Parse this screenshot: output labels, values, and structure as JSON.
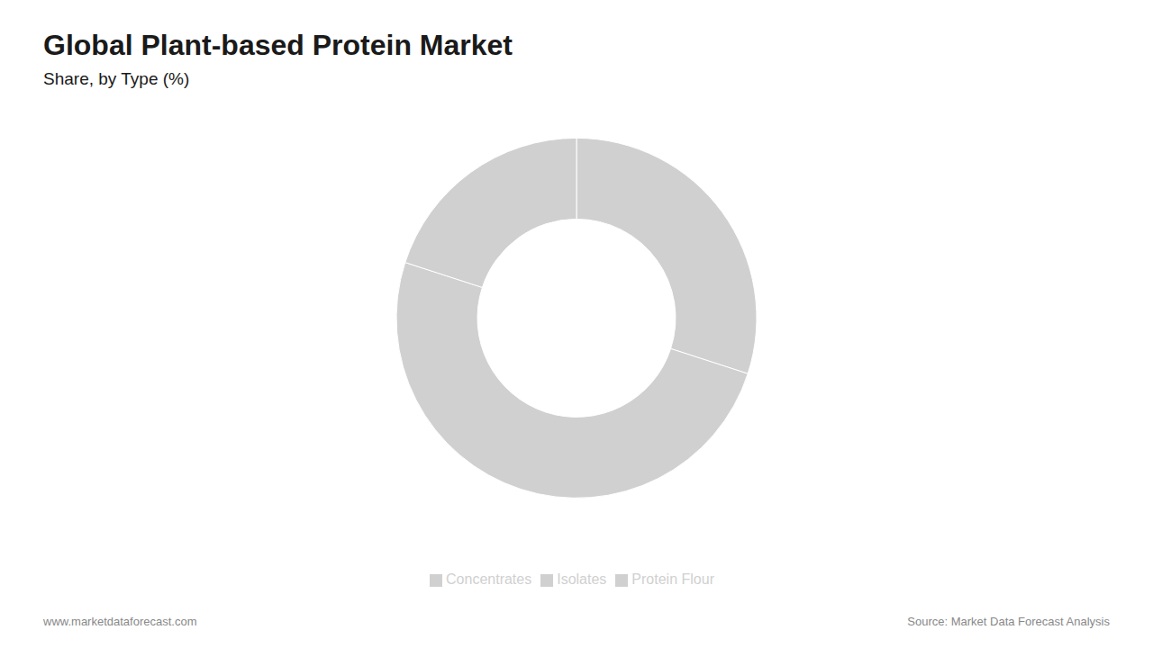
{
  "chart_data": {
    "type": "donut",
    "title": "Global Plant-based Protein Market",
    "subtitle": "Share, by Type (%)",
    "categories": [
      "Isolates",
      "Concentrates",
      "Protein Flour"
    ],
    "values": [
      30,
      50,
      20
    ],
    "colors": [
      "#d0d0d0",
      "#d0d0d0",
      "#d0d0d0"
    ],
    "legend": "bottom",
    "annotations": [
      "www.marketdataforecast.com",
      "Source: Market Data Forecast Analysis"
    ]
  }
}
